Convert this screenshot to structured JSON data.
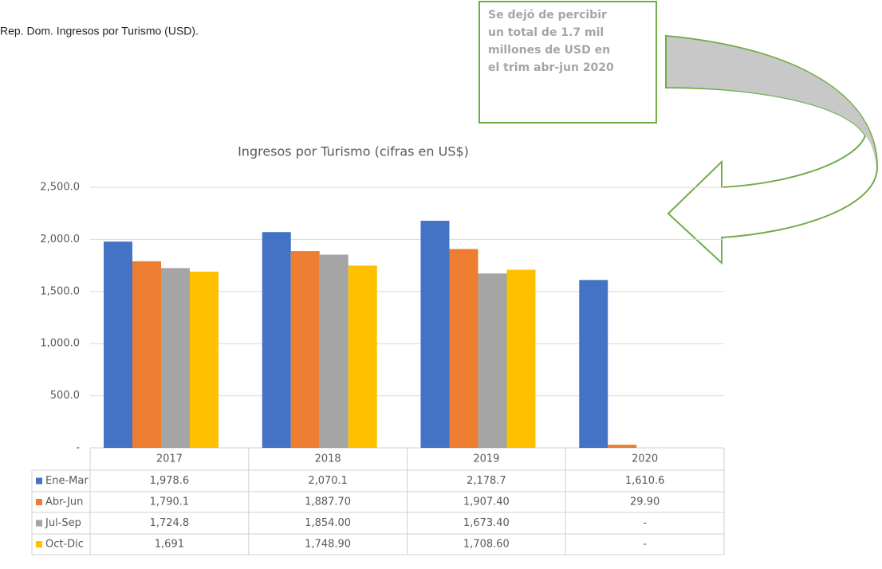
{
  "heading": "Rep. Dom. Ingresos por Turismo (USD).",
  "annotation": {
    "lines": [
      "Se dejó de percibir",
      "un total de 1.7 mil",
      "millones de USD en",
      "el trim abr-jun 2020"
    ]
  },
  "chart_data": {
    "type": "bar",
    "title": "Ingresos por Turismo (cifras en US$)",
    "categories": [
      "2017",
      "2018",
      "2019",
      "2020"
    ],
    "series": [
      {
        "name": "Ene-Mar",
        "color": "#4472c4",
        "values": [
          1978.6,
          2070.1,
          2178.7,
          1610.6
        ],
        "value_labels": [
          "1,978.6",
          "2,070.1",
          "2,178.7",
          "1,610.6"
        ]
      },
      {
        "name": "Abr-Jun",
        "color": "#ed7d31",
        "values": [
          1790.1,
          1887.7,
          1907.4,
          29.9
        ],
        "value_labels": [
          "1,790.1",
          "1,887.70",
          "1,907.40",
          "29.90"
        ]
      },
      {
        "name": "Jul-Sep",
        "color": "#a5a5a5",
        "values": [
          1724.8,
          1854,
          1673.4,
          null
        ],
        "value_labels": [
          "1,724.8",
          "1,854.00",
          "1,673.40",
          "-"
        ]
      },
      {
        "name": "Oct-Dic",
        "color": "#ffc000",
        "values": [
          1691,
          1748.9,
          1708.6,
          null
        ],
        "value_labels": [
          "1,691",
          "1,748.90",
          "1,708.60",
          "-"
        ]
      }
    ],
    "ylim": [
      0,
      2500
    ],
    "yticks": [
      {
        "value": 0,
        "label": "-"
      },
      {
        "value": 500,
        "label": "500.0"
      },
      {
        "value": 1000,
        "label": "1,000.0"
      },
      {
        "value": 1500,
        "label": "1,500.0"
      },
      {
        "value": 2000,
        "label": "2,000.0"
      },
      {
        "value": 2500,
        "label": "2,500.0"
      }
    ],
    "grid": true
  }
}
